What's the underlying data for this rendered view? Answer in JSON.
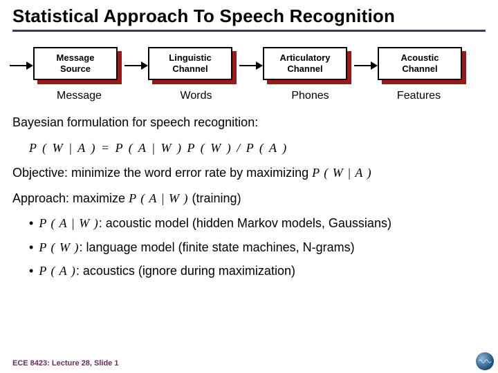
{
  "title": "Statistical Approach To Speech Recognition",
  "rule_color": "#3a3a6a",
  "chain": {
    "arrow_color": "#000000",
    "box_border_color": "#000000",
    "box_shadow_color": "#9a1a1a",
    "box_bg_color": "#ffffff",
    "box_font_weight": "bold",
    "boxes": [
      {
        "label": "Message\nSource",
        "sublabel": "Message"
      },
      {
        "label": "Linguistic\nChannel",
        "sublabel": "Words"
      },
      {
        "label": "Articulatory\nChannel",
        "sublabel": "Phones"
      },
      {
        "label": "Acoustic\nChannel",
        "sublabel": "Features"
      }
    ]
  },
  "body": {
    "bayes_intro": "Bayesian formulation for speech recognition:",
    "equation": "P ( W | A )  =  P ( A | W ) P ( W ) / P ( A )",
    "objective_pre": "Objective: minimize the word error rate by maximizing ",
    "objective_math": "P ( W | A )",
    "approach_pre": "Approach: maximize ",
    "approach_math": "P ( A | W )",
    "approach_post": " (training)",
    "bullets": [
      {
        "math": "P ( A | W )",
        "text": ": acoustic model (hidden Markov models, Gaussians)"
      },
      {
        "math": "P ( W )",
        "text": ": language model (finite state machines, N-grams)"
      },
      {
        "math": "P ( A )",
        "text": ": acoustics (ignore during maximization)"
      }
    ]
  },
  "footer": "ECE 8423: Lecture 28, Slide 1",
  "logo_gradient": [
    "#8fb8d8",
    "#2a5a88",
    "#0a2a48"
  ]
}
